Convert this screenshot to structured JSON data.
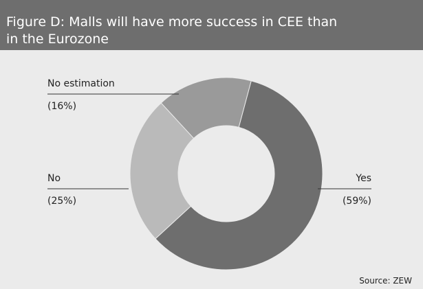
{
  "chart_data": {
    "type": "donut",
    "title": "Figure D: Malls will have more success in CEE than in the Eurozone",
    "categories": [
      "Yes",
      "No",
      "No estimation"
    ],
    "values": [
      59,
      25,
      16
    ],
    "value_labels": [
      "(59%)",
      "(25%)",
      "(16%)"
    ],
    "colors": [
      "#6e6e6e",
      "#bababa",
      "#9a9a9a"
    ],
    "source": "Source: ZEW"
  }
}
